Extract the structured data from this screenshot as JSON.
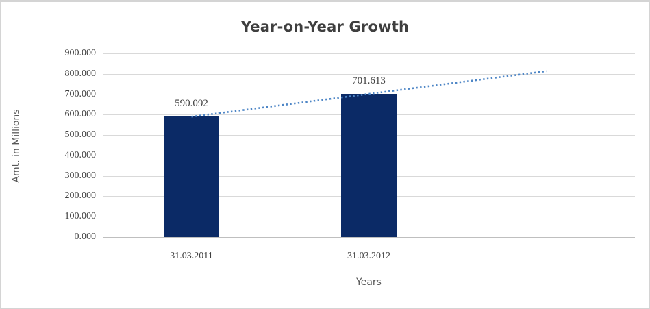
{
  "window": {
    "background": "#ffffff",
    "border_color": "#d4d4d4"
  },
  "chart_data": {
    "type": "bar",
    "title": "Year-on-Year Growth",
    "categories": [
      "31.03.2011",
      "31.03.2012"
    ],
    "values": [
      590.092,
      701.613
    ],
    "data_labels": [
      "590.092",
      "701.613"
    ],
    "xlabel": "Years",
    "ylabel": "Amt. in Millions",
    "ylim": [
      0,
      900
    ],
    "ytick_step": 100,
    "ytick_labels": [
      "0.000",
      "100.000",
      "200.000",
      "300.000",
      "400.000",
      "500.000",
      "600.000",
      "700.000",
      "800.000",
      "900.000"
    ],
    "grid": "horizontal-only",
    "legend": "none",
    "bar_color": "#0b2a66",
    "gridline_color": "#d9d9d9",
    "axis_line_color": "#bfbfbf",
    "title_color": "#3f3f3f",
    "tick_label_color": "#3f3f3f",
    "axis_title_color": "#595959",
    "trendline": {
      "type": "linear",
      "style": "dotted",
      "color": "#4e86c6",
      "forecast_forward_periods": 1
    }
  }
}
